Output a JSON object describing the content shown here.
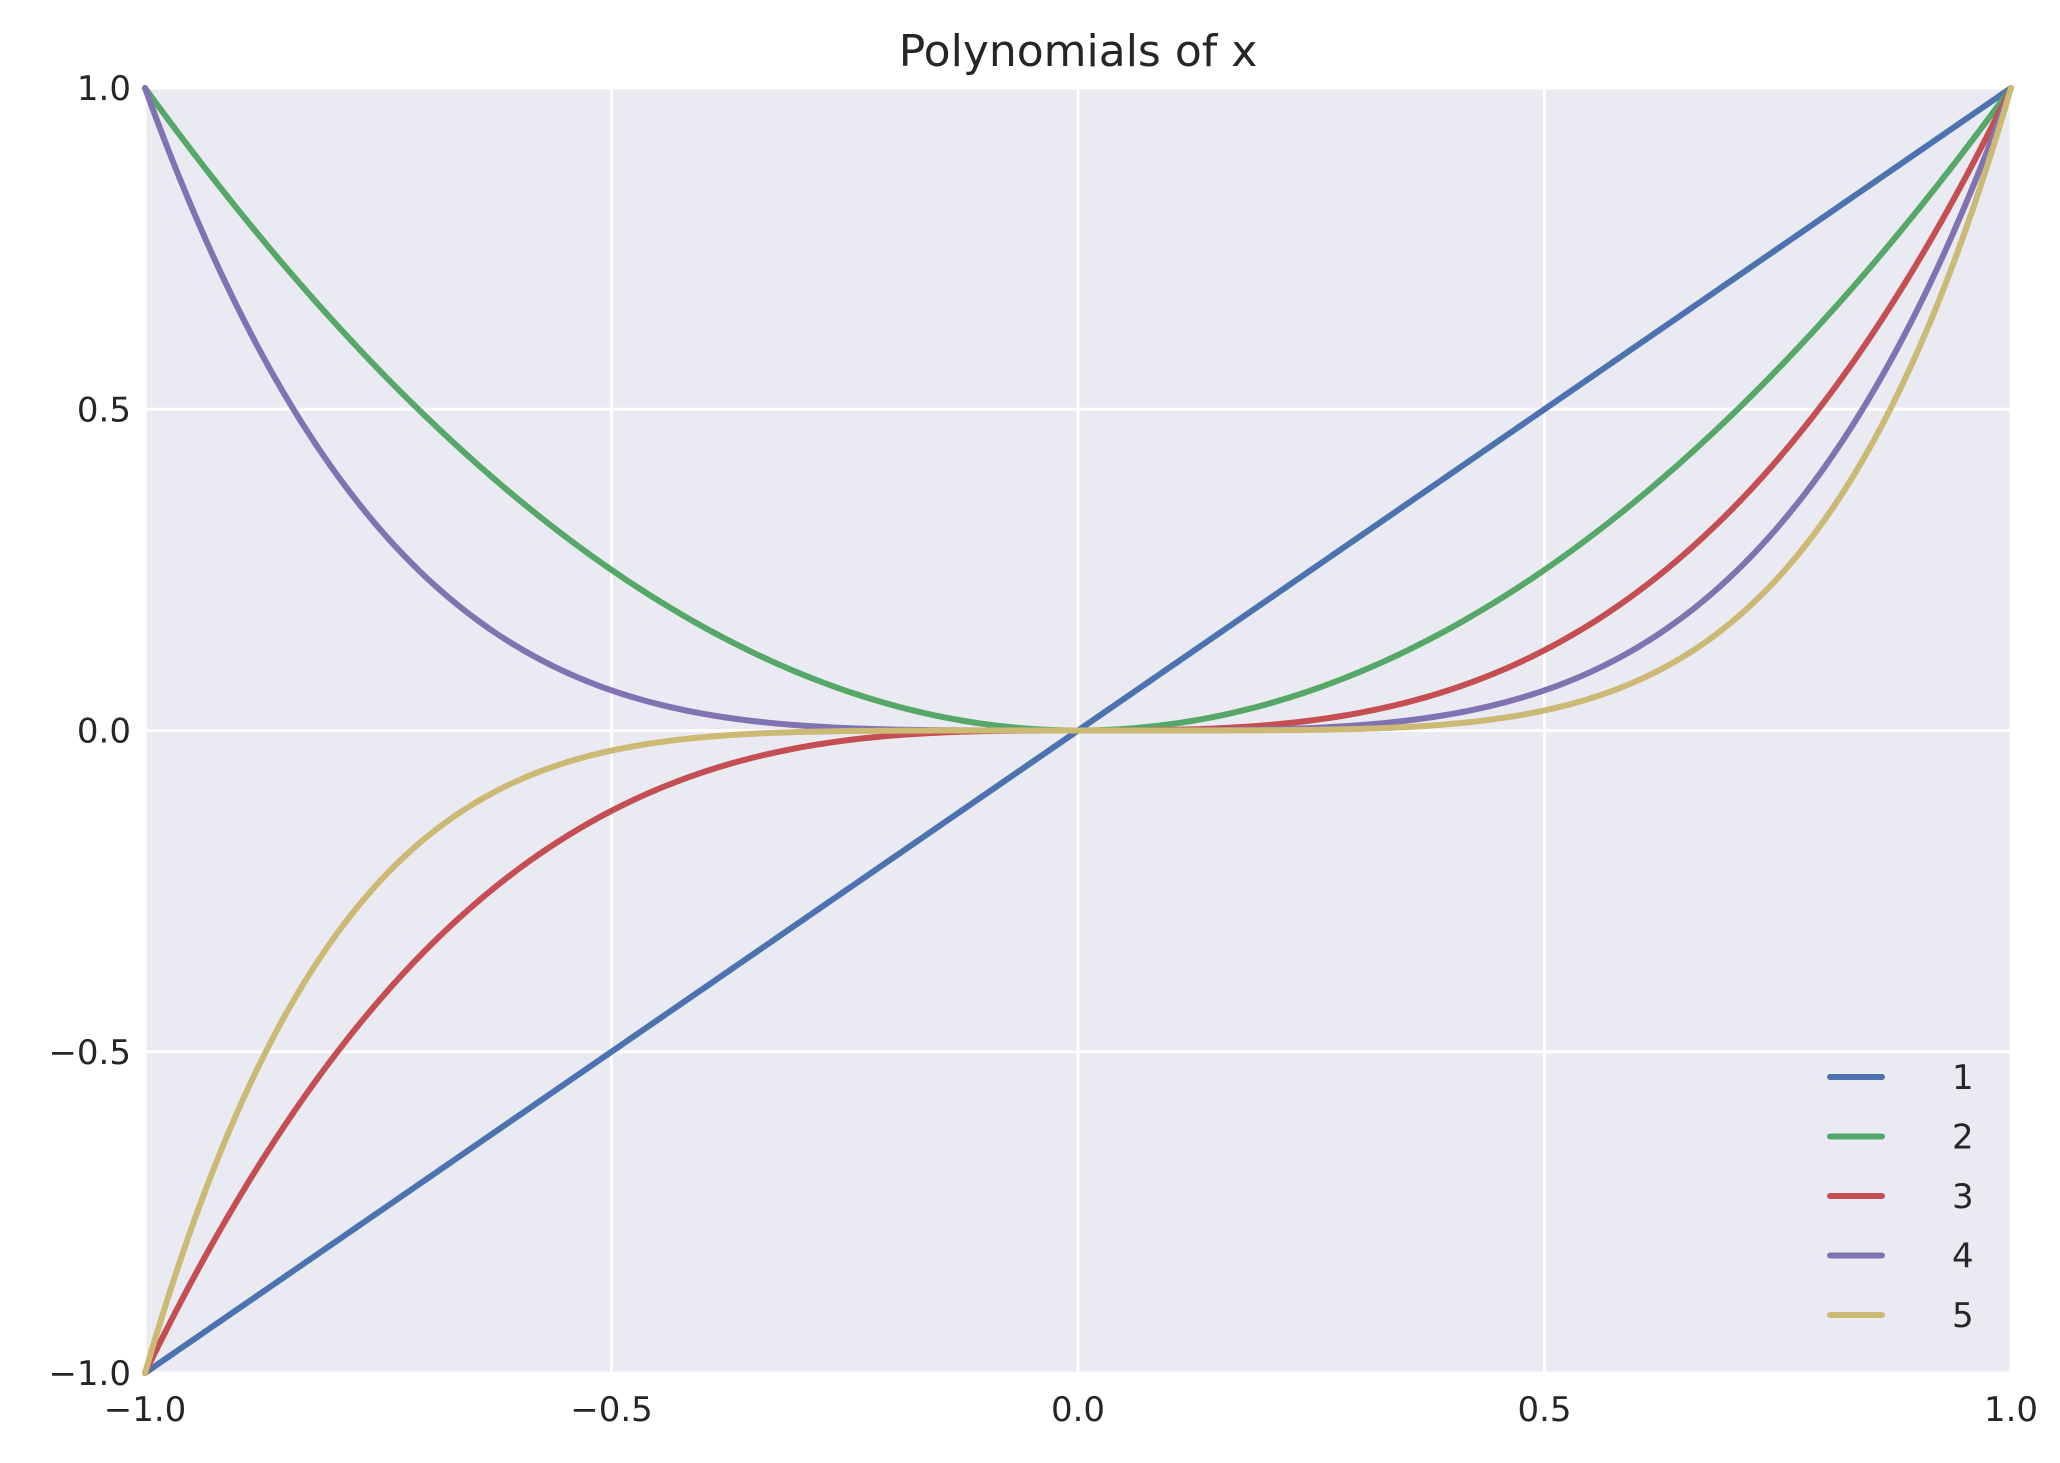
{
  "chart_data": {
    "type": "line",
    "title": "Polynomials of x",
    "xlabel": "",
    "ylabel": "",
    "xlim": [
      -1.0,
      1.0
    ],
    "ylim": [
      -1.0,
      1.0
    ],
    "x_ticks": [
      -1.0,
      -0.5,
      0.0,
      0.5,
      1.0
    ],
    "y_ticks": [
      -1.0,
      -0.5,
      0.0,
      0.5,
      1.0
    ],
    "x_tick_labels": [
      "−1.0",
      "−0.5",
      "0.0",
      "0.5",
      "1.0"
    ],
    "y_tick_labels": [
      "−1.0",
      "−0.5",
      "0.0",
      "0.5",
      "1.0"
    ],
    "grid": true,
    "legend_position": "lower-right",
    "x": [
      -1.0,
      -0.9,
      -0.8,
      -0.7,
      -0.6,
      -0.5,
      -0.4,
      -0.3,
      -0.2,
      -0.1,
      0.0,
      0.1,
      0.2,
      0.3,
      0.4,
      0.5,
      0.6,
      0.7,
      0.8,
      0.9,
      1.0
    ],
    "series": [
      {
        "name": "1",
        "color": "#4c72b0",
        "values": [
          -1.0,
          -0.9,
          -0.8,
          -0.7,
          -0.6,
          -0.5,
          -0.4,
          -0.3,
          -0.2,
          -0.1,
          0.0,
          0.1,
          0.2,
          0.3,
          0.4,
          0.5,
          0.6,
          0.7,
          0.8,
          0.9,
          1.0
        ]
      },
      {
        "name": "2",
        "color": "#55a868",
        "values": [
          1.0,
          0.81,
          0.64,
          0.49,
          0.36,
          0.25,
          0.16,
          0.09,
          0.04,
          0.01,
          0.0,
          0.01,
          0.04,
          0.09,
          0.16,
          0.25,
          0.36,
          0.49,
          0.64,
          0.81,
          1.0
        ]
      },
      {
        "name": "3",
        "color": "#c44e52",
        "values": [
          -1.0,
          -0.729,
          -0.512,
          -0.343,
          -0.216,
          -0.125,
          -0.064,
          -0.027,
          -0.008,
          -0.001,
          0.0,
          0.001,
          0.008,
          0.027,
          0.064,
          0.125,
          0.216,
          0.343,
          0.512,
          0.729,
          1.0
        ]
      },
      {
        "name": "4",
        "color": "#8172b2",
        "values": [
          1.0,
          0.6561,
          0.4096,
          0.2401,
          0.1296,
          0.0625,
          0.0256,
          0.0081,
          0.0016,
          0.0001,
          0.0,
          0.0001,
          0.0016,
          0.0081,
          0.0256,
          0.0625,
          0.1296,
          0.2401,
          0.4096,
          0.6561,
          1.0
        ]
      },
      {
        "name": "5",
        "color": "#ccb974",
        "values": [
          -1.0,
          -0.59049,
          -0.32768,
          -0.16807,
          -0.07776,
          -0.03125,
          -0.01024,
          -0.00243,
          -0.00032,
          -1e-05,
          0.0,
          1e-05,
          0.00032,
          0.00243,
          0.01024,
          0.03125,
          0.07776,
          0.16807,
          0.32768,
          0.59049,
          1.0
        ]
      }
    ],
    "colors": {
      "background": "#eaeaf2",
      "grid": "#ffffff",
      "text": "#262626"
    }
  }
}
